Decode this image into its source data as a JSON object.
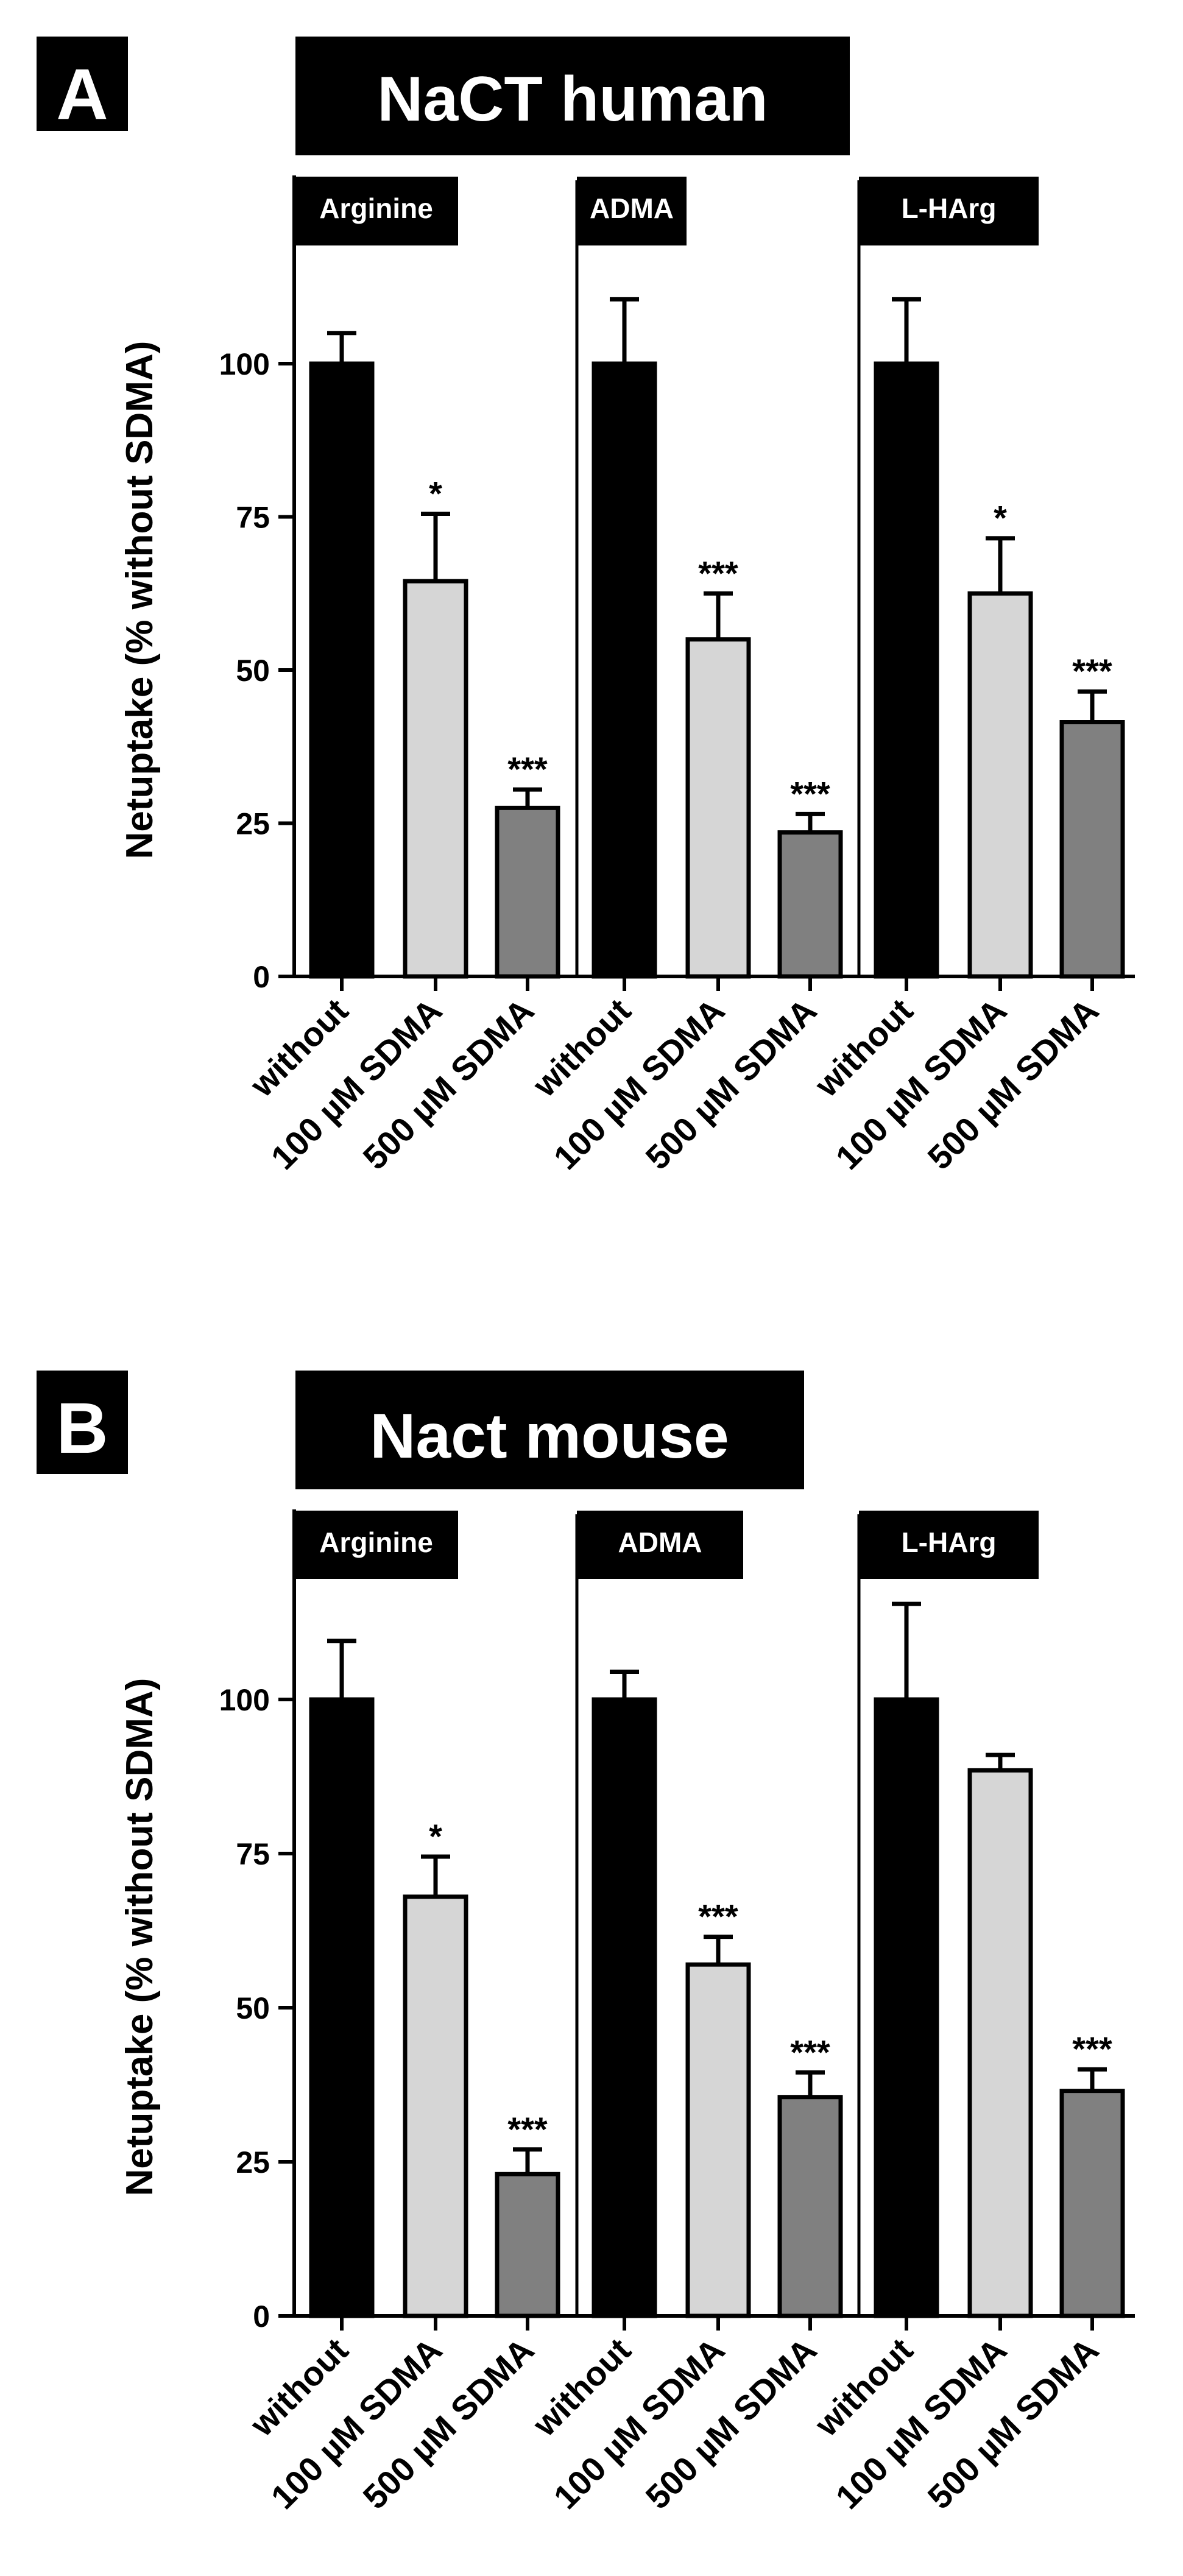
{
  "figure": {
    "panels": [
      {
        "letter": "A",
        "title": "NaCT human"
      },
      {
        "letter": "B",
        "title": "Nact mouse"
      }
    ]
  },
  "colors": {
    "without": "#000000",
    "100 µM SDMA": "#d6d6d6",
    "500 µM SDMA": "#808080",
    "axis": "#000000",
    "label_box": "#000000",
    "label_text": "#ffffff"
  },
  "chart_data": [
    {
      "type": "bar",
      "panel": "A",
      "title": "NaCT human",
      "ylabel": "Netuptake (% without SDMA)",
      "xlabel": "",
      "ylim": [
        0,
        125
      ],
      "yticks": [
        0,
        25,
        50,
        75,
        100
      ],
      "grid": false,
      "categories": [
        "without",
        "100 µM SDMA",
        "500 µM SDMA"
      ],
      "groups": [
        {
          "name": "Arginine",
          "values": [
            100,
            64.5,
            27.5
          ],
          "errors": [
            5,
            11,
            3
          ],
          "significance": [
            "",
            "*",
            "***"
          ]
        },
        {
          "name": "ADMA",
          "values": [
            100,
            55,
            23.5
          ],
          "errors": [
            10.5,
            7.5,
            3
          ],
          "significance": [
            "",
            "***",
            "***"
          ]
        },
        {
          "name": "L-HArg",
          "values": [
            100,
            62.5,
            41.5
          ],
          "errors": [
            10.5,
            9,
            5
          ],
          "significance": [
            "",
            "*",
            "***"
          ]
        }
      ]
    },
    {
      "type": "bar",
      "panel": "B",
      "title": "Nact mouse",
      "ylabel": "Netuptake (% without SDMA)",
      "xlabel": "",
      "ylim": [
        0,
        125
      ],
      "yticks": [
        0,
        25,
        50,
        75,
        100
      ],
      "grid": false,
      "categories": [
        "without",
        "100 µM SDMA",
        "500 µM SDMA"
      ],
      "groups": [
        {
          "name": "Arginine",
          "values": [
            100,
            68,
            23
          ],
          "errors": [
            9.5,
            6.5,
            4
          ],
          "significance": [
            "",
            "*",
            "***"
          ]
        },
        {
          "name": "ADMA",
          "values": [
            100,
            57,
            35.5
          ],
          "errors": [
            4.5,
            4.5,
            4
          ],
          "significance": [
            "",
            "***",
            "***"
          ]
        },
        {
          "name": "L-HArg",
          "values": [
            100,
            88.5,
            36.5
          ],
          "errors": [
            15.5,
            2.5,
            3.5
          ],
          "significance": [
            "",
            "",
            "***"
          ]
        }
      ]
    }
  ]
}
